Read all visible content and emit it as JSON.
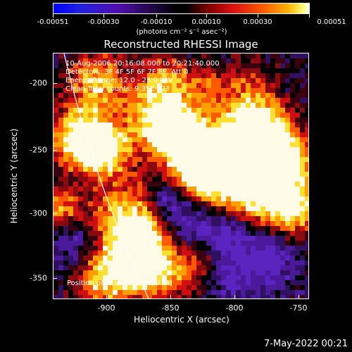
{
  "colorbar": {
    "labels": [
      "-0.00051",
      "-0.00030",
      "-0.00010",
      "0.00010",
      "0.00030",
      "0.00051"
    ],
    "units": "(photons cm⁻² s⁻¹ asec⁻²)"
  },
  "plot": {
    "title": "Reconstructed RHESSI Image",
    "info_lines": [
      "10-Aug-2006 20:16:08.000 to 20:21:40.000",
      "Detectors: 3F 4F 5F 6F 7F 8F, Att 0",
      "Energy Range: 12.0 - 25.0 keV",
      "Clean     Total counts: 9.35E+03"
    ],
    "peak_text": "Position of Peak = [-799,-274]",
    "xlabel": "Heliocentric X (arcsec)",
    "ylabel": "Heliocentric Y (arcsec)",
    "x_ticks": [
      "-900",
      "-850",
      "-800",
      "-750"
    ],
    "y_ticks": [
      "-200",
      "-250",
      "-300",
      "-350"
    ]
  },
  "timestamp": "7-May-2022 00:21",
  "chart_data": {
    "type": "heatmap",
    "title": "Reconstructed RHESSI Image",
    "xlabel": "Heliocentric X (arcsec)",
    "ylabel": "Heliocentric Y (arcsec)",
    "xlim": [
      -943,
      -747
    ],
    "ylim": [
      -368,
      -180
    ],
    "x_ticks": [
      -900,
      -850,
      -800,
      -750
    ],
    "y_ticks": [
      -200,
      -250,
      -300,
      -350
    ],
    "colorbar_range": [
      -0.00051,
      0.00051
    ],
    "peak": [
      -799,
      -274
    ],
    "colormap": "blue-purple-black-red-orange-yellow-white"
  }
}
